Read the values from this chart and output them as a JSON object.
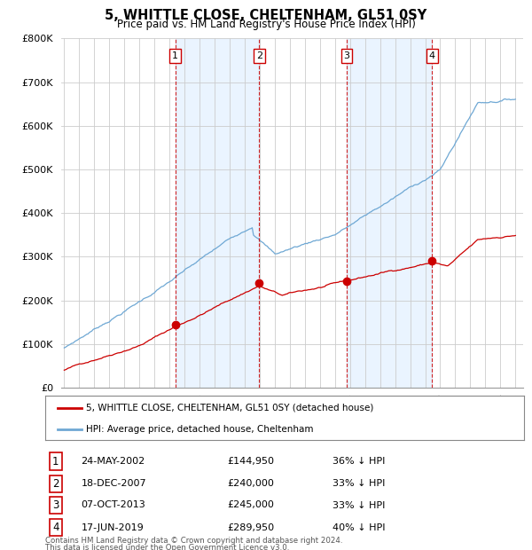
{
  "title": "5, WHITTLE CLOSE, CHELTENHAM, GL51 0SY",
  "subtitle": "Price paid vs. HM Land Registry's House Price Index (HPI)",
  "legend_label_red": "5, WHITTLE CLOSE, CHELTENHAM, GL51 0SY (detached house)",
  "legend_label_blue": "HPI: Average price, detached house, Cheltenham",
  "footer_line1": "Contains HM Land Registry data © Crown copyright and database right 2024.",
  "footer_line2": "This data is licensed under the Open Government Licence v3.0.",
  "transactions": [
    {
      "num": 1,
      "date": "24-MAY-2002",
      "price": "£144,950",
      "pct": "36% ↓ HPI",
      "year": 2002.38,
      "price_val": 144950
    },
    {
      "num": 2,
      "date": "18-DEC-2007",
      "price": "£240,000",
      "pct": "33% ↓ HPI",
      "year": 2007.96,
      "price_val": 240000
    },
    {
      "num": 3,
      "date": "07-OCT-2013",
      "price": "£245,000",
      "pct": "33% ↓ HPI",
      "year": 2013.77,
      "price_val": 245000
    },
    {
      "num": 4,
      "date": "17-JUN-2019",
      "price": "£289,950",
      "pct": "40% ↓ HPI",
      "year": 2019.46,
      "price_val": 289950
    }
  ],
  "red_color": "#cc0000",
  "blue_color": "#6fa8d4",
  "shade_color": "#ddeeff",
  "vline_color": "#cc0000",
  "bg_color": "#ffffff",
  "grid_color": "#cccccc",
  "ylim": [
    0,
    800000
  ],
  "yticks": [
    0,
    100000,
    200000,
    300000,
    400000,
    500000,
    600000,
    700000,
    800000
  ],
  "xlim_start": 1994.8,
  "xlim_end": 2025.5,
  "year_start": 1995,
  "year_end": 2025
}
